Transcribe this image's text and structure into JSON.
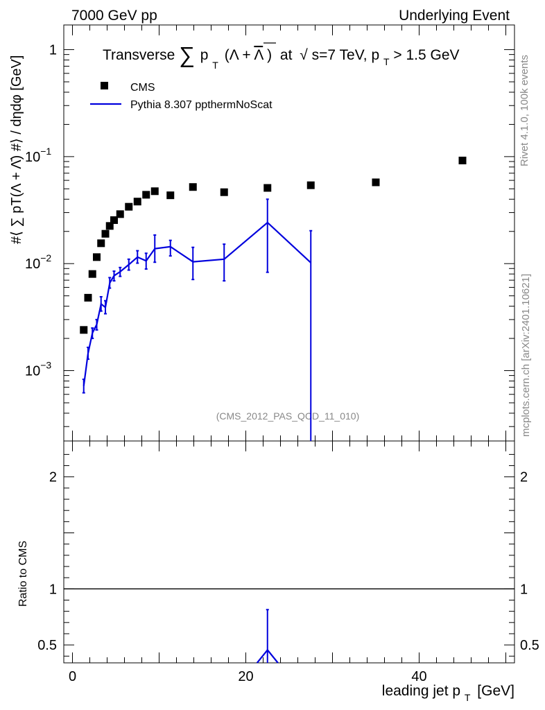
{
  "header": {
    "left": "7000 GeV pp",
    "right": "Underlying Event"
  },
  "side": {
    "rivet": "Rivet 4.1.0,  100k events",
    "mcplots": "mcplots.cern.ch [arXiv:2401.10621]"
  },
  "chart_data": {
    "type": "scatter",
    "title": "Transverse Σ pT(Λ + Λ̄) at √s=7 TeV, pT > 1.5 GeV",
    "title_parts": {
      "pre": "Transverse",
      "sum": "∑",
      "p": "p",
      "sub_t": "T",
      "paren_open": "(Λ + ",
      "lambda_bar": "Λ",
      "paren_close": ")",
      "at": "at",
      "sqrt": "√",
      "s_rest": "s=7 TeV, p",
      "cut": " > 1.5 GeV"
    },
    "analysis_label": "(CMS_2012_PAS_QCD_11_010)",
    "xlabel": "leading jet p",
    "xlabel_sub": "T",
    "xlabel_unit": "[GeV]",
    "ylabel": "#⟨ ∑ pT(Λ + Λ̄) #⟩ / dηdφ [GeV]",
    "ratio_ylabel": "Ratio to CMS",
    "xlim": [
      -1,
      51
    ],
    "ylim": [
      0.00022,
      1.7
    ],
    "yscale": "log",
    "ratio_ylim": [
      0.34,
      2.32
    ],
    "x_ticks": [
      0,
      20,
      40
    ],
    "y_ticks": [
      {
        "value": 1,
        "mant": "1",
        "exp": ""
      },
      {
        "value": 0.1,
        "mant": "10",
        "exp": "−1"
      },
      {
        "value": 0.01,
        "mant": "10",
        "exp": "−2"
      },
      {
        "value": 0.001,
        "mant": "10",
        "exp": "−3"
      }
    ],
    "ratio_ticks": [
      {
        "value": 2,
        "label": "2"
      },
      {
        "value": 1,
        "label": "1"
      },
      {
        "value": 0.5,
        "label": "0.5"
      }
    ],
    "legend": [
      {
        "name": "CMS",
        "marker": "square",
        "color": "#000000"
      },
      {
        "name": "Pythia 8.307 ppthermNoScat",
        "marker": "line",
        "color": "#0000dd"
      }
    ],
    "series": [
      {
        "name": "CMS",
        "color": "#000000",
        "x": [
          1.3,
          1.8,
          2.3,
          2.8,
          3.3,
          3.8,
          4.3,
          4.8,
          5.5,
          6.5,
          7.5,
          8.5,
          9.5,
          11.3,
          13.9,
          17.5,
          22.5,
          27.5,
          35.0,
          45.0
        ],
        "y": [
          0.0024,
          0.0048,
          0.008,
          0.0115,
          0.0155,
          0.019,
          0.0225,
          0.0255,
          0.029,
          0.034,
          0.038,
          0.044,
          0.0475,
          0.0435,
          0.052,
          0.0465,
          0.051,
          0.054,
          0.0575,
          0.092
        ]
      },
      {
        "name": "Pythia 8.307 ppthermNoScat",
        "color": "#0000dd",
        "x": [
          1.3,
          1.8,
          2.3,
          2.8,
          3.3,
          3.8,
          4.3,
          4.8,
          5.5,
          6.5,
          7.5,
          8.5,
          9.5,
          11.3,
          13.9,
          17.5,
          22.5,
          27.5
        ],
        "y": [
          0.00072,
          0.00145,
          0.00225,
          0.0027,
          0.0042,
          0.0039,
          0.0066,
          0.0077,
          0.0084,
          0.0098,
          0.0115,
          0.0106,
          0.0138,
          0.0144,
          0.0104,
          0.011,
          0.0242,
          0.0102
        ],
        "y_low": [
          0.00062,
          0.00128,
          0.002,
          0.0024,
          0.0036,
          0.0034,
          0.0059,
          0.0069,
          0.0076,
          0.0087,
          0.0101,
          0.0089,
          0.0103,
          0.0118,
          0.0071,
          0.0069,
          0.0083,
          0.00022
        ],
        "y_high": [
          0.00083,
          0.00165,
          0.0025,
          0.003,
          0.0049,
          0.0045,
          0.0074,
          0.0085,
          0.0092,
          0.011,
          0.0132,
          0.0125,
          0.0185,
          0.0165,
          0.0142,
          0.0152,
          0.04,
          0.0203
        ]
      }
    ],
    "ratio_series": {
      "name": "Pythia 8.307 ppthermNoScat",
      "color": "#0000dd",
      "x": [
        21.3,
        22.5,
        23.7
      ],
      "y": [
        0.34,
        0.455,
        0.34
      ],
      "err_x": 22.5,
      "err_low": 0.34,
      "err_high": 0.815
    }
  }
}
